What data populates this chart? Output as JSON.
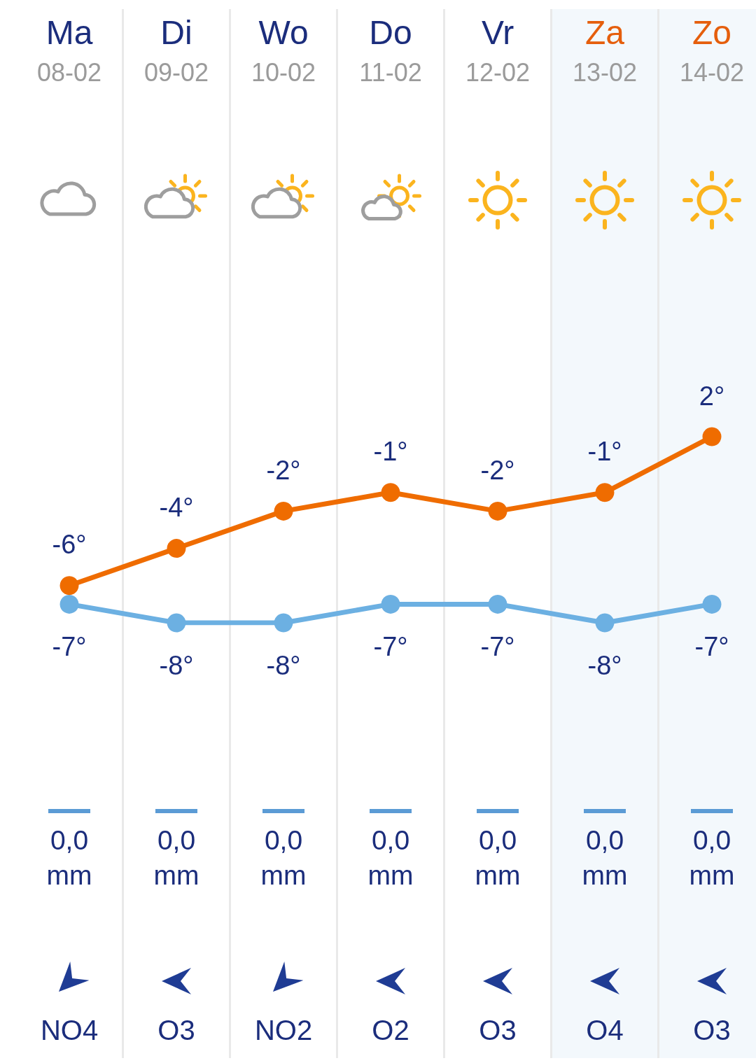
{
  "chart_data": {
    "type": "line",
    "categories": [
      "Ma",
      "Di",
      "Wo",
      "Do",
      "Vr",
      "Za",
      "Zo"
    ],
    "series": [
      {
        "color": "#ef6c00",
        "values": [
          -6,
          -4,
          -2,
          -1,
          -2,
          -1,
          2
        ],
        "value_labels": [
          "-6°",
          "-4°",
          "-2°",
          "-1°",
          "-2°",
          "-1°",
          "2°"
        ]
      },
      {
        "color": "#6cb0e2",
        "values": [
          -7,
          -8,
          -8,
          -7,
          -7,
          -8,
          -7
        ],
        "value_labels": [
          "-7°",
          "-8°",
          "-8°",
          "-7°",
          "-7°",
          "-8°",
          "-7°"
        ]
      }
    ],
    "marker": "circle",
    "line_style": "solid",
    "tick_labels": "x",
    "bands": [
      {
        "axis": "x",
        "from": "Za",
        "to": "Zo",
        "color": "#f3f8fc"
      }
    ],
    "annotations": [
      "08-02",
      "09-02",
      "10-02",
      "11-02",
      "12-02",
      "13-02",
      "14-02",
      "0,0 mm",
      "0,0 mm",
      "0,0 mm",
      "0,0 mm",
      "0,0 mm",
      "0,0 mm",
      "0,0 mm",
      "NO4",
      "O3",
      "NO2",
      "O2",
      "O3",
      "O4",
      "O3"
    ]
  }
}
